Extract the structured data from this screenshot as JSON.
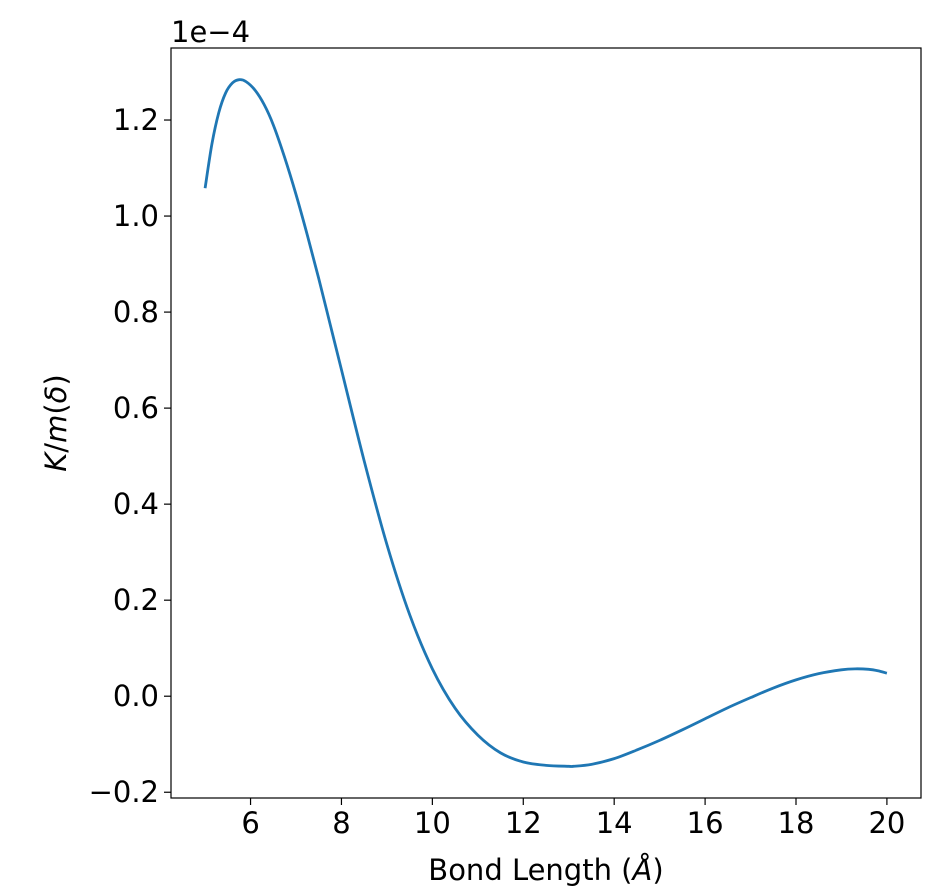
{
  "chart_data": {
    "type": "line",
    "xlabel": {
      "prefix": "Bond Length (",
      "symbol": "Å",
      "suffix": ")"
    },
    "ylabel": {
      "k": "K",
      "slash": "/",
      "m": "m",
      "lp": "(",
      "delta": "δ",
      "rp": ")"
    },
    "offset_text": "1e−4",
    "xlim": [
      4.25,
      20.75
    ],
    "ylim": [
      -0.212,
      1.35
    ],
    "x_ticks": [
      {
        "value": 6,
        "label": "6"
      },
      {
        "value": 8,
        "label": "8"
      },
      {
        "value": 10,
        "label": "10"
      },
      {
        "value": 12,
        "label": "12"
      },
      {
        "value": 14,
        "label": "14"
      },
      {
        "value": 16,
        "label": "16"
      },
      {
        "value": 18,
        "label": "18"
      },
      {
        "value": 20,
        "label": "20"
      }
    ],
    "y_ticks": [
      {
        "value": -0.2,
        "label": "−0.2"
      },
      {
        "value": 0.0,
        "label": "0.0"
      },
      {
        "value": 0.2,
        "label": "0.2"
      },
      {
        "value": 0.4,
        "label": "0.4"
      },
      {
        "value": 0.6,
        "label": "0.6"
      },
      {
        "value": 0.8,
        "label": "0.8"
      },
      {
        "value": 1.0,
        "label": "1.0"
      },
      {
        "value": 1.2,
        "label": "1.2"
      }
    ],
    "grid": false,
    "line_color": "#1f77b4",
    "series": [
      {
        "x": [
          5.0,
          5.15,
          5.3,
          5.45,
          5.6,
          5.75,
          5.9,
          6.1,
          6.3,
          6.5,
          6.75,
          7.0,
          7.25,
          7.5,
          7.75,
          8.0,
          8.5,
          9.0,
          9.5,
          10.0,
          10.5,
          11.0,
          11.5,
          12.0,
          12.5,
          13.0,
          13.1,
          13.5,
          14.0,
          14.5,
          15.0,
          15.5,
          16.0,
          16.5,
          17.0,
          17.5,
          18.0,
          18.5,
          19.0,
          19.3,
          19.6,
          19.8,
          20.0
        ],
        "y": [
          1.058,
          1.15,
          1.215,
          1.256,
          1.277,
          1.284,
          1.28,
          1.262,
          1.232,
          1.19,
          1.122,
          1.045,
          0.96,
          0.87,
          0.775,
          0.68,
          0.49,
          0.316,
          0.17,
          0.057,
          -0.025,
          -0.081,
          -0.118,
          -0.137,
          -0.144,
          -0.146,
          -0.146,
          -0.142,
          -0.13,
          -0.112,
          -0.092,
          -0.07,
          -0.047,
          -0.024,
          -0.003,
          0.017,
          0.034,
          0.047,
          0.055,
          0.057,
          0.056,
          0.053,
          0.048
        ]
      }
    ]
  }
}
